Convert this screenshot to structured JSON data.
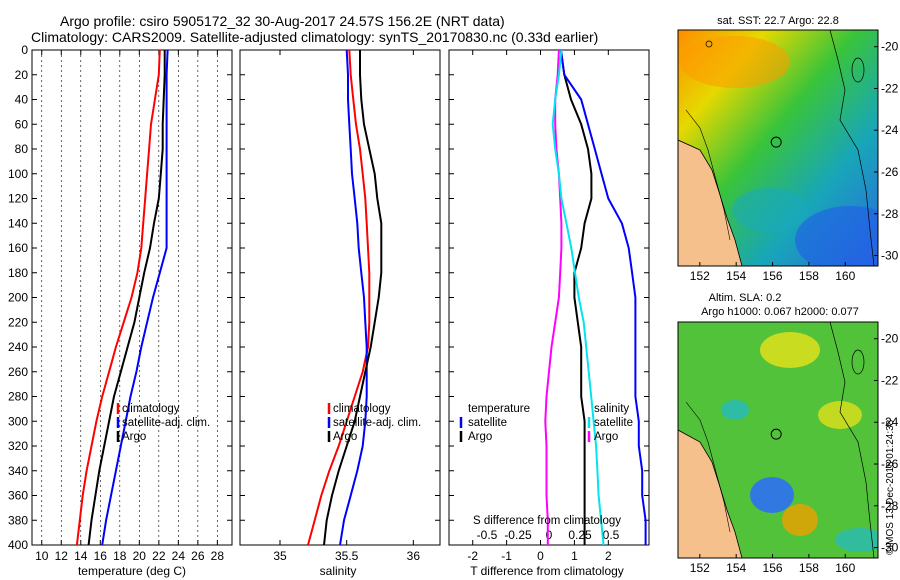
{
  "colors": {
    "climatology": "#ff0000",
    "satellite": "#0000ff",
    "argo": "#000000",
    "temp_diff": "#00e5ee",
    "sal_diff": "#ff00ff",
    "land": "#f5c08c"
  },
  "header": {
    "line1": "Argo profile: csiro 5905172_32 30-Aug-2017 24.57S 156.2E (NRT data)",
    "line2": "Climatology: CARS2009. Satellite-adjusted climatology: synTS_20170830.nc (0.33d earlier)"
  },
  "legend": {
    "climatology": "climatology",
    "satellite_adj": "satellite-adj. clim.",
    "argo": "Argo",
    "temperature": "temperature",
    "salinity": "salinity",
    "satellite": "satellite"
  },
  "maps": {
    "sst_title": "sat. SST: 22.7 Argo: 22.8",
    "sla_title": "Altim. SLA: 0.2",
    "sla_subtitle": "Argo h1000: 0.067 h2000: 0.077",
    "lon_ticks": [
      "152",
      "154",
      "156",
      "158",
      "160"
    ],
    "lat_ticks": [
      "-20",
      "-22",
      "-24",
      "-26",
      "-28",
      "-30"
    ],
    "argo_lon": 156.2,
    "argo_lat": -24.57
  },
  "credit": "©IMOS 13-Dec-2018 01:24:38",
  "chart_data": [
    {
      "type": "line",
      "title": "",
      "xlabel": "temperature (deg C)",
      "ylabel": "",
      "xlim": [
        9,
        29.5
      ],
      "ylim": [
        400,
        0
      ],
      "grid": "vertical-dashed",
      "x_ticks": [
        10,
        12,
        14,
        16,
        18,
        20,
        22,
        24,
        26,
        28
      ],
      "y_ticks": [
        0,
        20,
        40,
        60,
        80,
        100,
        120,
        140,
        160,
        180,
        200,
        220,
        240,
        260,
        280,
        300,
        320,
        340,
        360,
        380,
        400
      ],
      "series": [
        {
          "name": "climatology",
          "color": "#ff0000",
          "points": [
            [
              22.1,
              0
            ],
            [
              22.0,
              20
            ],
            [
              21.6,
              40
            ],
            [
              21.2,
              60
            ],
            [
              21.0,
              80
            ],
            [
              20.8,
              100
            ],
            [
              20.6,
              120
            ],
            [
              20.4,
              140
            ],
            [
              20.2,
              160
            ],
            [
              19.8,
              180
            ],
            [
              19.2,
              200
            ],
            [
              18.4,
              220
            ],
            [
              17.6,
              240
            ],
            [
              16.9,
              260
            ],
            [
              16.2,
              280
            ],
            [
              15.6,
              300
            ],
            [
              15.1,
              320
            ],
            [
              14.6,
              340
            ],
            [
              14.2,
              360
            ],
            [
              13.9,
              380
            ],
            [
              13.6,
              400
            ]
          ]
        },
        {
          "name": "satellite-adj. clim.",
          "color": "#0000ff",
          "points": [
            [
              22.9,
              0
            ],
            [
              22.8,
              20
            ],
            [
              22.8,
              40
            ],
            [
              22.8,
              60
            ],
            [
              22.8,
              80
            ],
            [
              22.8,
              100
            ],
            [
              22.8,
              120
            ],
            [
              22.8,
              140
            ],
            [
              22.8,
              160
            ],
            [
              22.1,
              180
            ],
            [
              21.4,
              200
            ],
            [
              20.8,
              220
            ],
            [
              20.2,
              240
            ],
            [
              19.7,
              260
            ],
            [
              19.1,
              280
            ],
            [
              18.6,
              300
            ],
            [
              18.1,
              320
            ],
            [
              17.6,
              340
            ],
            [
              17.1,
              360
            ],
            [
              16.6,
              380
            ],
            [
              16.2,
              400
            ]
          ]
        },
        {
          "name": "Argo",
          "color": "#000000",
          "points": [
            [
              22.6,
              0
            ],
            [
              22.6,
              20
            ],
            [
              22.5,
              40
            ],
            [
              22.4,
              60
            ],
            [
              22.4,
              80
            ],
            [
              22.2,
              100
            ],
            [
              22.0,
              120
            ],
            [
              21.5,
              140
            ],
            [
              21.1,
              160
            ],
            [
              20.5,
              180
            ],
            [
              20.0,
              200
            ],
            [
              19.5,
              220
            ],
            [
              18.8,
              240
            ],
            [
              18.1,
              260
            ],
            [
              17.4,
              280
            ],
            [
              16.9,
              300
            ],
            [
              16.4,
              320
            ],
            [
              15.9,
              340
            ],
            [
              15.5,
              360
            ],
            [
              15.1,
              380
            ],
            [
              14.8,
              400
            ]
          ]
        }
      ]
    },
    {
      "type": "line",
      "title": "",
      "xlabel": "salinity",
      "ylabel": "",
      "xlim": [
        34.7,
        36.2
      ],
      "ylim": [
        400,
        0
      ],
      "grid": "none",
      "x_ticks": [
        35,
        35.5,
        36
      ],
      "x_tick_labels": [
        "35",
        "35.5",
        "36"
      ],
      "series": [
        {
          "name": "climatology",
          "color": "#ff0000",
          "points": [
            [
              35.52,
              0
            ],
            [
              35.53,
              20
            ],
            [
              35.55,
              40
            ],
            [
              35.57,
              60
            ],
            [
              35.6,
              80
            ],
            [
              35.62,
              100
            ],
            [
              35.64,
              120
            ],
            [
              35.65,
              140
            ],
            [
              35.66,
              160
            ],
            [
              35.67,
              180
            ],
            [
              35.67,
              200
            ],
            [
              35.67,
              220
            ],
            [
              35.66,
              240
            ],
            [
              35.62,
              260
            ],
            [
              35.56,
              280
            ],
            [
              35.5,
              300
            ],
            [
              35.44,
              320
            ],
            [
              35.37,
              340
            ],
            [
              35.31,
              360
            ],
            [
              35.26,
              380
            ],
            [
              35.21,
              400
            ]
          ]
        },
        {
          "name": "satellite-adj. clim.",
          "color": "#0000ff",
          "points": [
            [
              35.5,
              0
            ],
            [
              35.51,
              20
            ],
            [
              35.51,
              40
            ],
            [
              35.52,
              60
            ],
            [
              35.53,
              80
            ],
            [
              35.54,
              100
            ],
            [
              35.56,
              120
            ],
            [
              35.58,
              140
            ],
            [
              35.59,
              160
            ],
            [
              35.61,
              180
            ],
            [
              35.63,
              200
            ],
            [
              35.64,
              220
            ],
            [
              35.65,
              240
            ],
            [
              35.65,
              260
            ],
            [
              35.65,
              280
            ],
            [
              35.64,
              300
            ],
            [
              35.62,
              320
            ],
            [
              35.58,
              340
            ],
            [
              35.53,
              360
            ],
            [
              35.48,
              380
            ],
            [
              35.45,
              400
            ]
          ]
        },
        {
          "name": "Argo",
          "color": "#000000",
          "points": [
            [
              35.6,
              0
            ],
            [
              35.6,
              20
            ],
            [
              35.61,
              40
            ],
            [
              35.63,
              60
            ],
            [
              35.67,
              80
            ],
            [
              35.71,
              100
            ],
            [
              35.73,
              120
            ],
            [
              35.76,
              140
            ],
            [
              35.76,
              160
            ],
            [
              35.76,
              180
            ],
            [
              35.74,
              200
            ],
            [
              35.71,
              220
            ],
            [
              35.68,
              240
            ],
            [
              35.64,
              260
            ],
            [
              35.6,
              280
            ],
            [
              35.56,
              300
            ],
            [
              35.5,
              320
            ],
            [
              35.44,
              340
            ],
            [
              35.39,
              360
            ],
            [
              35.35,
              380
            ],
            [
              35.33,
              400
            ]
          ]
        }
      ]
    },
    {
      "type": "line",
      "title": "",
      "xlabel": "T difference from climatology",
      "secondary_xlabel": "S difference from climatology",
      "ylabel": "",
      "xlim": [
        -2.7,
        3.2
      ],
      "ylim": [
        400,
        0
      ],
      "grid": "none",
      "x_ticks": [
        -2,
        -1,
        0,
        1,
        2
      ],
      "x_tick_labels": [
        "-2",
        "-1",
        "0",
        "1",
        "2"
      ],
      "secondary_x_ticks": [
        -0.5,
        -0.25,
        0,
        0.25,
        0.5
      ],
      "secondary_x_tick_labels": [
        "-0.5",
        "-0.25",
        "0",
        "0.25",
        "0.5"
      ],
      "series": [
        {
          "name": "temperature (climatology)",
          "color": "#000000",
          "points": [
            [
              0.6,
              0
            ],
            [
              0.7,
              20
            ],
            [
              0.9,
              40
            ],
            [
              1.2,
              60
            ],
            [
              1.4,
              80
            ],
            [
              1.5,
              100
            ],
            [
              1.5,
              120
            ],
            [
              1.3,
              140
            ],
            [
              1.2,
              160
            ],
            [
              1.0,
              180
            ],
            [
              1.0,
              200
            ],
            [
              1.1,
              220
            ],
            [
              1.2,
              240
            ],
            [
              1.2,
              260
            ],
            [
              1.2,
              280
            ],
            [
              1.3,
              300
            ],
            [
              1.3,
              320
            ],
            [
              1.3,
              340
            ],
            [
              1.3,
              360
            ],
            [
              1.3,
              380
            ],
            [
              1.3,
              400
            ]
          ]
        },
        {
          "name": "temperature (satellite)",
          "color": "#0000ff",
          "points": [
            [
              0.6,
              0
            ],
            [
              0.7,
              20
            ],
            [
              1.2,
              40
            ],
            [
              1.4,
              60
            ],
            [
              1.6,
              80
            ],
            [
              1.8,
              100
            ],
            [
              2.0,
              120
            ],
            [
              2.4,
              140
            ],
            [
              2.6,
              160
            ],
            [
              2.7,
              180
            ],
            [
              2.8,
              200
            ],
            [
              2.8,
              220
            ],
            [
              2.8,
              240
            ],
            [
              2.8,
              260
            ],
            [
              2.8,
              280
            ],
            [
              2.9,
              300
            ],
            [
              2.9,
              320
            ],
            [
              3.0,
              340
            ],
            [
              3.0,
              360
            ],
            [
              3.1,
              380
            ],
            [
              3.1,
              400
            ]
          ]
        },
        {
          "name": "salinity (climatology)",
          "color": "#ff00ff",
          "points": [
            [
              0.08,
              0
            ],
            [
              0.07,
              20
            ],
            [
              0.05,
              40
            ],
            [
              0.05,
              60
            ],
            [
              0.06,
              80
            ],
            [
              0.08,
              100
            ],
            [
              0.09,
              120
            ],
            [
              0.1,
              140
            ],
            [
              0.1,
              160
            ],
            [
              0.09,
              180
            ],
            [
              0.08,
              200
            ],
            [
              0.05,
              220
            ],
            [
              0.02,
              240
            ],
            [
              0.0,
              260
            ],
            [
              -0.02,
              280
            ],
            [
              -0.03,
              300
            ],
            [
              -0.02,
              320
            ],
            [
              -0.02,
              340
            ],
            [
              -0.02,
              360
            ],
            [
              -0.01,
              380
            ],
            [
              -0.01,
              400
            ]
          ]
        },
        {
          "name": "salinity (satellite)",
          "color": "#00e5ee",
          "points": [
            [
              0.1,
              0
            ],
            [
              0.08,
              20
            ],
            [
              0.05,
              40
            ],
            [
              0.03,
              60
            ],
            [
              0.05,
              80
            ],
            [
              0.08,
              100
            ],
            [
              0.1,
              120
            ],
            [
              0.14,
              140
            ],
            [
              0.18,
              160
            ],
            [
              0.21,
              180
            ],
            [
              0.24,
              200
            ],
            [
              0.28,
              220
            ],
            [
              0.3,
              240
            ],
            [
              0.32,
              260
            ],
            [
              0.34,
              280
            ],
            [
              0.36,
              300
            ],
            [
              0.38,
              320
            ],
            [
              0.39,
              340
            ],
            [
              0.4,
              360
            ],
            [
              0.42,
              380
            ],
            [
              0.44,
              400
            ]
          ]
        }
      ]
    }
  ]
}
